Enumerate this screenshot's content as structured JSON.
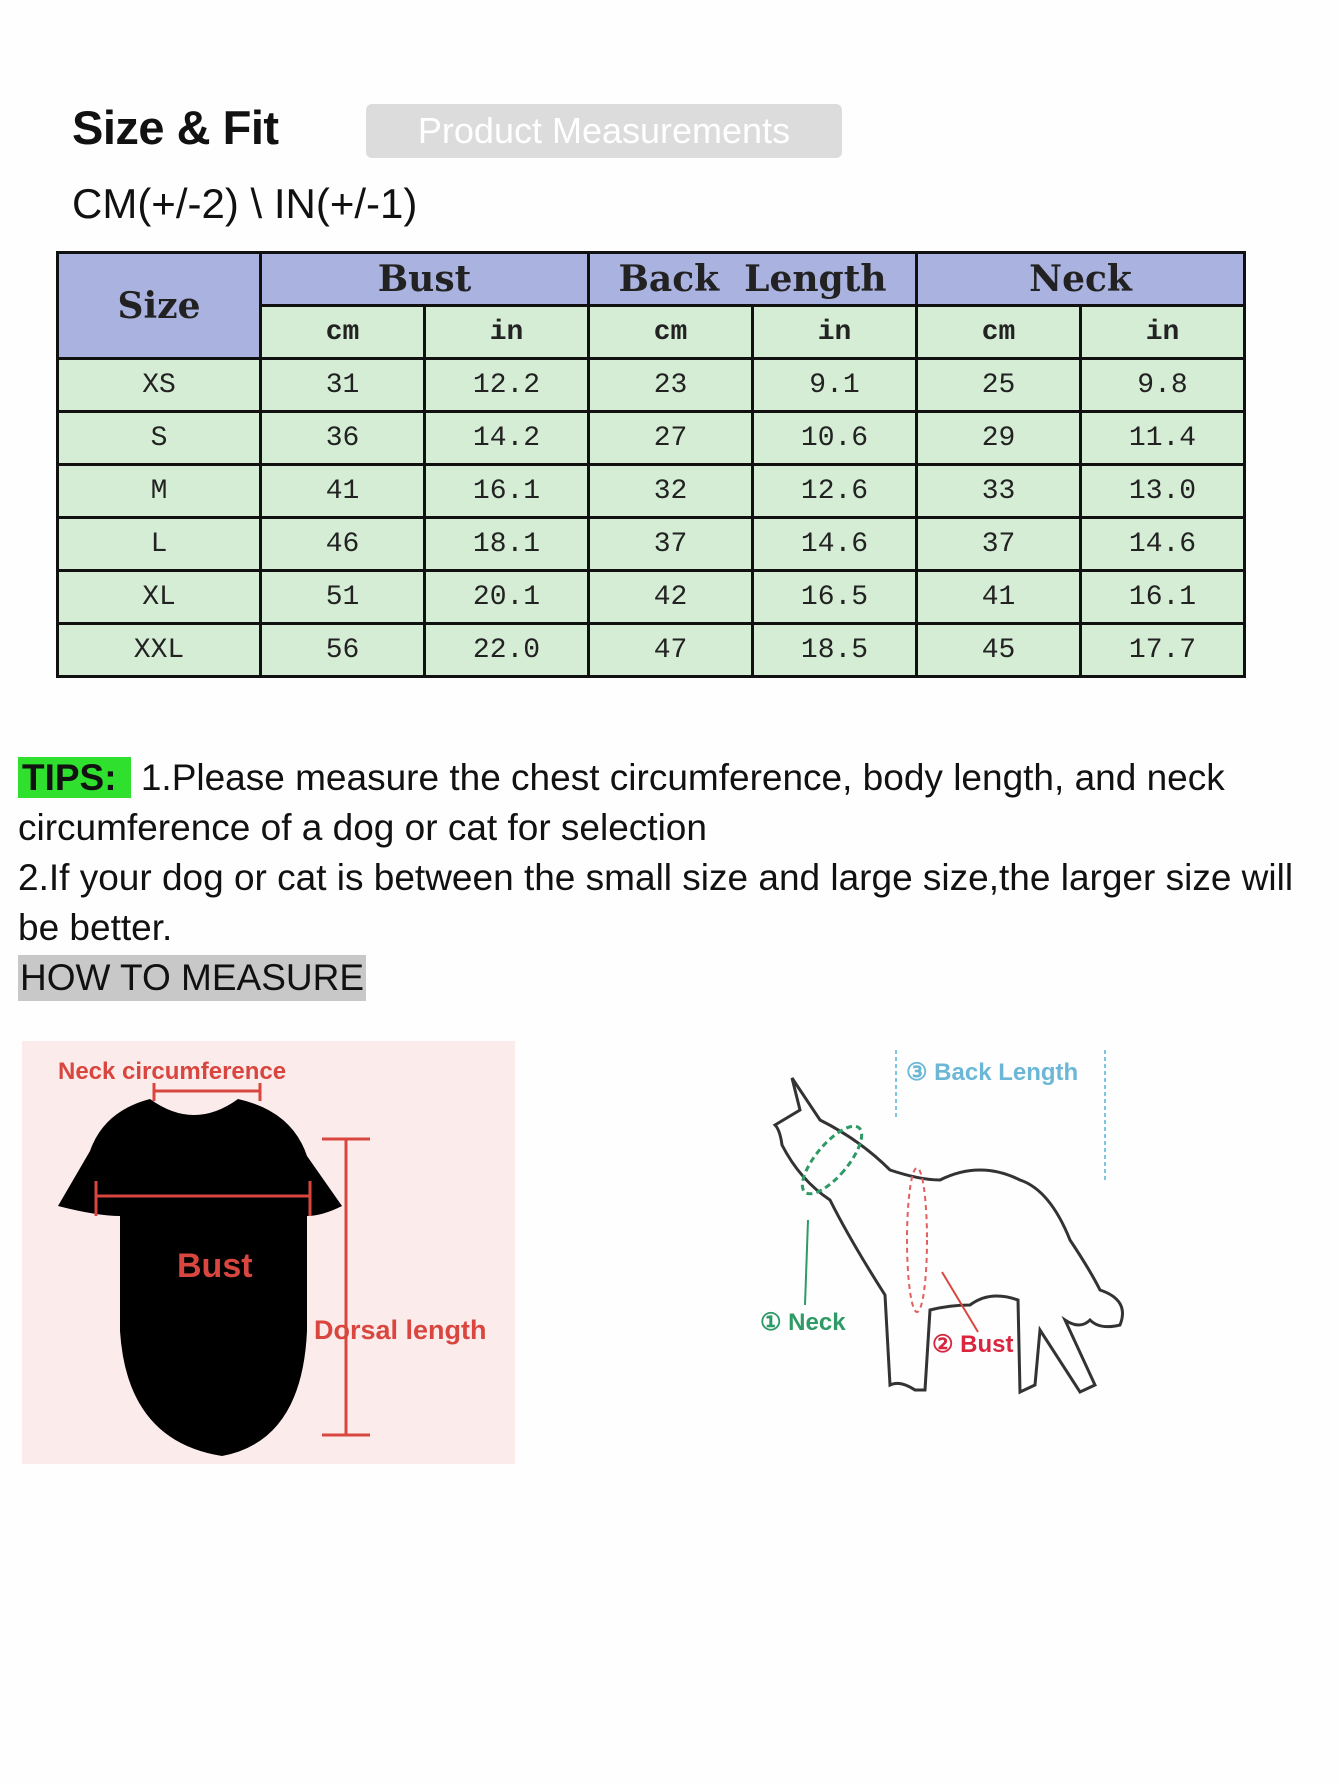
{
  "header": {
    "title": "Size & Fit",
    "tab_label": "Product Measurements",
    "tolerance": "CM(+/-2) \\ IN(+/-1)"
  },
  "table": {
    "size_header": "Size",
    "groups": [
      "Bust",
      "Back  Length",
      "Neck"
    ],
    "units": [
      "cm",
      "in",
      "cm",
      "in",
      "cm",
      "in"
    ],
    "rows": [
      [
        "XS",
        "31",
        "12.2",
        "23",
        "9.1",
        "25",
        "9.8"
      ],
      [
        "S",
        "36",
        "14.2",
        "27",
        "10.6",
        "29",
        "11.4"
      ],
      [
        "M",
        "41",
        "16.1",
        "32",
        "12.6",
        "33",
        "13.0"
      ],
      [
        "L",
        "46",
        "18.1",
        "37",
        "14.6",
        "37",
        "14.6"
      ],
      [
        "XL",
        "51",
        "20.1",
        "42",
        "16.5",
        "41",
        "16.1"
      ],
      [
        "XXL",
        "56",
        "22.0",
        "47",
        "18.5",
        "45",
        "17.7"
      ]
    ],
    "colors": {
      "header": "#aab3df",
      "cells": "#d5ecd5"
    }
  },
  "tips": {
    "label": "TIPS:",
    "line1": "1.Please measure the chest circumference, body length, and neck circumference of a dog or cat for selection",
    "line2": "2.If your dog or cat is between the small size and large size,the larger size will be better.",
    "how_to": "HOW TO MEASURE",
    "label_color": "#2fe02f"
  },
  "garment_diagram": {
    "neck": "Neck circumference",
    "bust": "Bust",
    "dorsal": "Dorsal length"
  },
  "dog_diagram": {
    "back": "③ Back Length",
    "neck": "① Neck",
    "bust": "② Bust"
  }
}
